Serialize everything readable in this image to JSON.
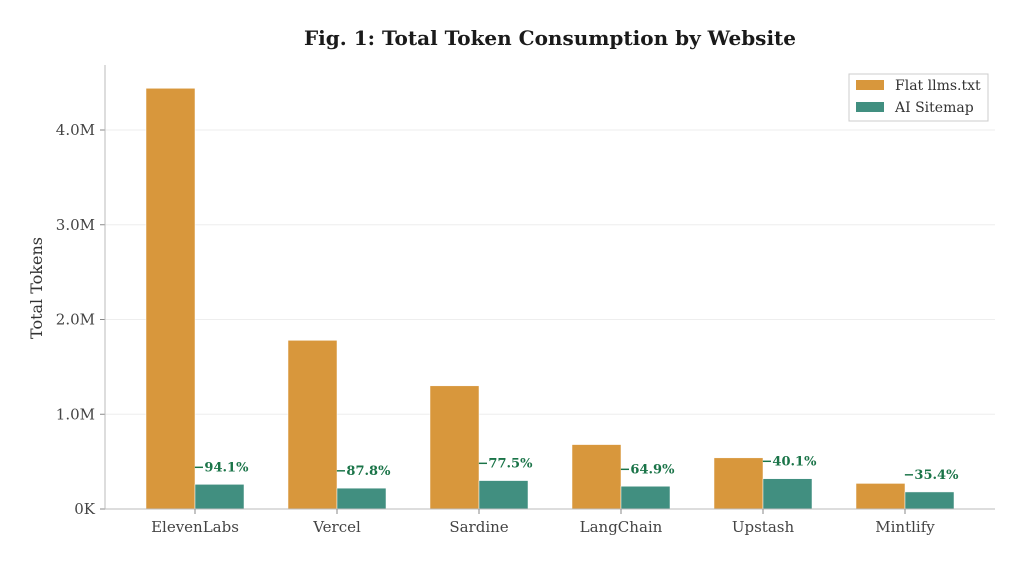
{
  "chart_data": {
    "type": "bar",
    "title": "Fig. 1: Total Token Consumption by Website",
    "xlabel": "",
    "ylabel": "Total Tokens",
    "ylim": [
      0,
      4.7
    ],
    "y_unit": "M tokens",
    "yticks": [
      0,
      1,
      2,
      3,
      4
    ],
    "ytick_labels": [
      "0K",
      "1.0M",
      "2.0M",
      "3.0M",
      "4.0M"
    ],
    "grid": "horizontal, light",
    "legend_position": "top-right",
    "categories": [
      "ElevenLabs",
      "Vercel",
      "Sardine",
      "LangChain",
      "Upstash",
      "Mintlify"
    ],
    "series": [
      {
        "name": "Flat llms.txt",
        "color": "#D8973C",
        "values": [
          4.44,
          1.78,
          1.3,
          0.68,
          0.54,
          0.27
        ]
      },
      {
        "name": "AI Sitemap",
        "color": "#418F80",
        "values": [
          0.26,
          0.22,
          0.3,
          0.24,
          0.32,
          0.18
        ]
      }
    ],
    "annotations": [
      "−94.1%",
      "−87.8%",
      "−77.5%",
      "−64.9%",
      "−40.1%",
      "−35.4%"
    ],
    "annotation_color": "#1A7448"
  }
}
